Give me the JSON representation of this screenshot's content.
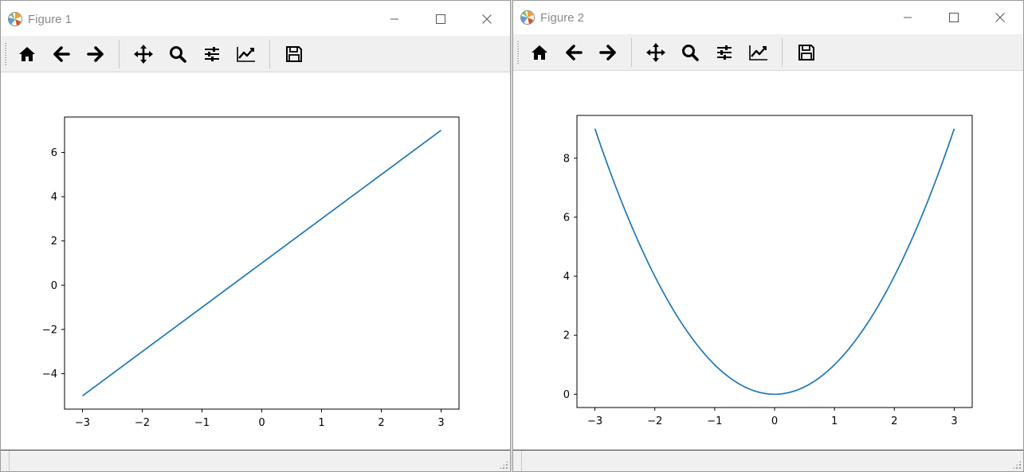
{
  "windows": [
    {
      "title": "Figure 1",
      "toolbar": [
        {
          "icon": "home-icon"
        },
        {
          "icon": "back-arrow-icon"
        },
        {
          "icon": "forward-arrow-icon"
        },
        {
          "icon": "pan-move-icon"
        },
        {
          "icon": "zoom-magnifier-icon"
        },
        {
          "icon": "configure-subplots-icon"
        },
        {
          "icon": "edit-axis-icon"
        },
        {
          "icon": "save-floppy-icon"
        }
      ],
      "status_text": ""
    },
    {
      "title": "Figure 2",
      "toolbar": [
        {
          "icon": "home-icon"
        },
        {
          "icon": "back-arrow-icon"
        },
        {
          "icon": "forward-arrow-icon"
        },
        {
          "icon": "pan-move-icon"
        },
        {
          "icon": "zoom-magnifier-icon"
        },
        {
          "icon": "configure-subplots-icon"
        },
        {
          "icon": "edit-axis-icon"
        },
        {
          "icon": "save-floppy-icon"
        }
      ],
      "status_text": ""
    }
  ],
  "colors": {
    "line": "#1f77b4",
    "title_text": "#8a8a8a"
  },
  "chart_data": [
    {
      "type": "line",
      "function": "y = 2x + 1",
      "x": [
        -3,
        -2,
        -1,
        0,
        1,
        2,
        3
      ],
      "series": [
        {
          "values": [
            -5,
            -3,
            -1,
            1,
            3,
            5,
            7
          ]
        }
      ],
      "xticks": [
        -3,
        -2,
        -1,
        0,
        1,
        2,
        3
      ],
      "yticks": [
        -4,
        -2,
        0,
        2,
        4,
        6
      ],
      "xlim": [
        -3.3,
        3.3
      ],
      "ylim": [
        -5.6,
        7.6
      ],
      "grid": false
    },
    {
      "type": "line",
      "function": "y = x^2",
      "x": [
        -3,
        -2,
        -1,
        0,
        1,
        2,
        3
      ],
      "series": [
        {
          "values": [
            9,
            4,
            1,
            0,
            1,
            4,
            9
          ]
        }
      ],
      "xticks": [
        -3,
        -2,
        -1,
        0,
        1,
        2,
        3
      ],
      "yticks": [
        0,
        2,
        4,
        6,
        8
      ],
      "xlim": [
        -3.3,
        3.3
      ],
      "ylim": [
        -0.45,
        9.45
      ],
      "grid": false
    }
  ]
}
